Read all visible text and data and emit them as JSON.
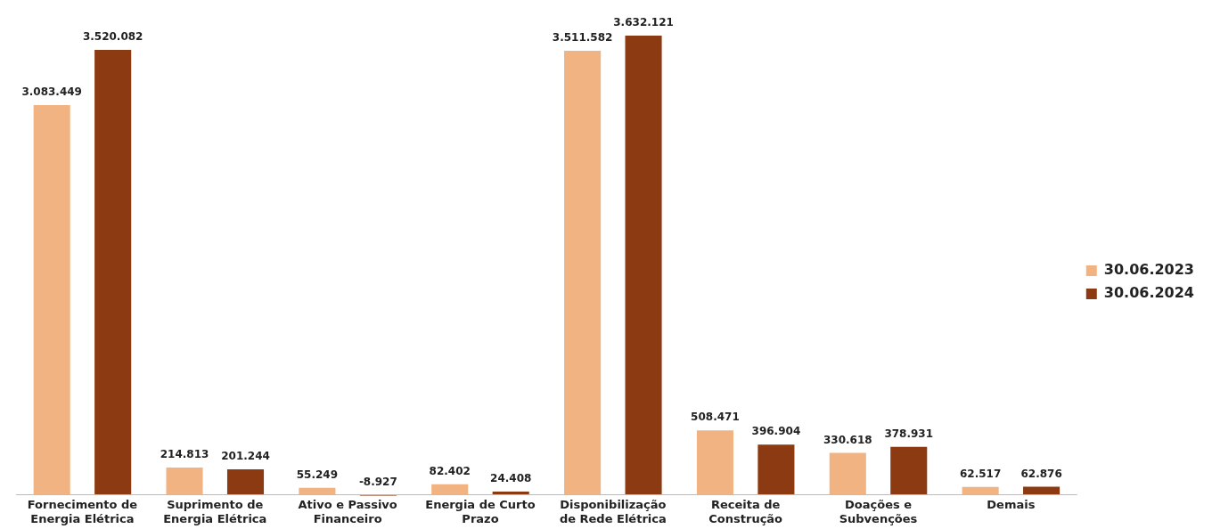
{
  "chart_data": {
    "type": "bar",
    "categories": [
      "Fornecimento de Energia Elétrica",
      "Suprimento de Energia Elétrica",
      "Ativo e Passivo Financeiro",
      "Energia de Curto Prazo",
      "Disponibilização de Rede Elétrica",
      "Receita de Construção",
      "Doações e Subvenções",
      "Demais"
    ],
    "series": [
      {
        "name": "30.06.2023",
        "color": "#f2b382",
        "values": [
          3083449,
          214813,
          55249,
          82402,
          3511582,
          508471,
          330618,
          62517
        ],
        "value_labels": [
          "3.083.449",
          "214.813",
          "55.249",
          "82.402",
          "3.511.582",
          "508.471",
          "330.618",
          "62.517"
        ]
      },
      {
        "name": "30.06.2024",
        "color": "#8c3a12",
        "values": [
          3520082,
          201244,
          -8927,
          24408,
          3632121,
          396904,
          378931,
          62876
        ],
        "value_labels": [
          "3.520.082",
          "201.244",
          "-8.927",
          "24.408",
          "3.632.121",
          "396.904",
          "378.931",
          "62.876"
        ]
      }
    ],
    "tick_labels": "x",
    "grid": false,
    "legend": "right"
  }
}
